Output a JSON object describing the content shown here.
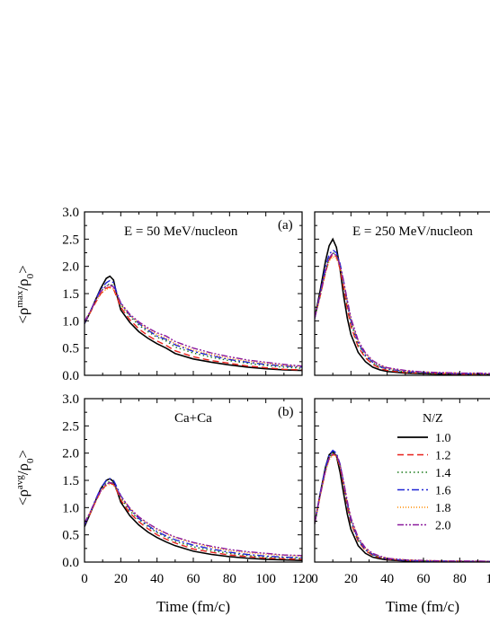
{
  "chart_data": {
    "type": "line",
    "x_unit_label": "Time (fm/c)",
    "series_styles": [
      {
        "name": "1.0",
        "color": "#000000",
        "dash": ""
      },
      {
        "name": "1.2",
        "color": "#e8211c",
        "dash": "7,4"
      },
      {
        "name": "1.4",
        "color": "#1a7a1a",
        "dash": "1.5,3"
      },
      {
        "name": "1.6",
        "color": "#1f25d6",
        "dash": "8,3,2,3"
      },
      {
        "name": "1.8",
        "color": "#ff8c00",
        "dash": "1,2"
      },
      {
        "name": "2.0",
        "color": "#8b1a9e",
        "dash": "7,2,2,2,2,2"
      }
    ],
    "legend": {
      "title": "N/Z",
      "entries": [
        "1.0",
        "1.2",
        "1.4",
        "1.6",
        "1.8",
        "2.0"
      ],
      "placement": "panel-d right"
    },
    "panels": [
      {
        "id": "a",
        "panel_label": "(a)",
        "annotation": "E = 50 MeV/nucleon",
        "ylabel": "<ρmax/ρ0>",
        "xlim": [
          0,
          120
        ],
        "ylim": [
          0,
          3.0
        ],
        "yticks": [
          "0.0",
          "0.5",
          "1.0",
          "1.5",
          "2.0",
          "2.5",
          "3.0"
        ],
        "x": [
          0,
          3,
          6,
          9,
          12,
          14,
          16,
          18,
          20,
          25,
          30,
          35,
          40,
          45,
          50,
          60,
          70,
          80,
          90,
          100,
          110,
          120
        ],
        "series": [
          {
            "name": "1.0",
            "values": [
              0.95,
              1.15,
              1.38,
              1.6,
              1.78,
              1.82,
              1.75,
              1.45,
              1.2,
              0.97,
              0.8,
              0.68,
              0.58,
              0.5,
              0.4,
              0.3,
              0.24,
              0.19,
              0.15,
              0.12,
              0.1,
              0.09
            ]
          },
          {
            "name": "1.2",
            "values": [
              0.97,
              1.14,
              1.33,
              1.5,
              1.6,
              1.62,
              1.58,
              1.42,
              1.25,
              1.02,
              0.85,
              0.73,
              0.63,
              0.55,
              0.45,
              0.34,
              0.27,
              0.22,
              0.17,
              0.14,
              0.11,
              0.1
            ]
          },
          {
            "name": "1.4",
            "values": [
              0.98,
              1.16,
              1.36,
              1.54,
              1.65,
              1.68,
              1.64,
              1.48,
              1.3,
              1.08,
              0.92,
              0.8,
              0.7,
              0.63,
              0.52,
              0.41,
              0.33,
              0.27,
              0.22,
              0.18,
              0.15,
              0.13
            ]
          },
          {
            "name": "1.6",
            "values": [
              0.96,
              1.16,
              1.38,
              1.58,
              1.7,
              1.74,
              1.7,
              1.5,
              1.32,
              1.1,
              0.95,
              0.83,
              0.72,
              0.66,
              0.56,
              0.44,
              0.36,
              0.29,
              0.24,
              0.2,
              0.17,
              0.15
            ]
          },
          {
            "name": "1.8",
            "values": [
              0.98,
              1.15,
              1.34,
              1.5,
              1.58,
              1.6,
              1.58,
              1.45,
              1.3,
              1.1,
              0.96,
              0.85,
              0.75,
              0.68,
              0.58,
              0.46,
              0.38,
              0.31,
              0.26,
              0.22,
              0.18,
              0.16
            ]
          },
          {
            "name": "2.0",
            "values": [
              0.99,
              1.16,
              1.36,
              1.54,
              1.64,
              1.66,
              1.62,
              1.48,
              1.33,
              1.12,
              0.98,
              0.87,
              0.78,
              0.72,
              0.62,
              0.5,
              0.41,
              0.34,
              0.28,
              0.24,
              0.2,
              0.17
            ]
          }
        ]
      },
      {
        "id": "b",
        "panel_label": "(b)",
        "annotation": "Ca+Ca",
        "ylabel": "<ρavg/ρ0>",
        "xlim": [
          0,
          120
        ],
        "ylim": [
          0,
          3.0
        ],
        "yticks": [
          "0.0",
          "0.5",
          "1.0",
          "1.5",
          "2.0",
          "2.5",
          "3.0"
        ],
        "xticks": [
          "0",
          "20",
          "40",
          "60",
          "80",
          "100",
          "120"
        ],
        "x": [
          0,
          3,
          6,
          9,
          12,
          14,
          16,
          18,
          20,
          25,
          30,
          35,
          40,
          45,
          50,
          60,
          70,
          80,
          90,
          100,
          110,
          120
        ],
        "series": [
          {
            "name": "1.0",
            "values": [
              0.65,
              0.88,
              1.12,
              1.35,
              1.5,
              1.53,
              1.48,
              1.3,
              1.1,
              0.85,
              0.68,
              0.55,
              0.45,
              0.37,
              0.3,
              0.2,
              0.14,
              0.1,
              0.07,
              0.05,
              0.04,
              0.03
            ]
          },
          {
            "name": "1.2",
            "values": [
              0.68,
              0.88,
              1.1,
              1.3,
              1.42,
              1.45,
              1.42,
              1.3,
              1.14,
              0.9,
              0.74,
              0.61,
              0.5,
              0.42,
              0.35,
              0.24,
              0.18,
              0.13,
              0.1,
              0.07,
              0.06,
              0.05
            ]
          },
          {
            "name": "1.4",
            "values": [
              0.7,
              0.9,
              1.12,
              1.32,
              1.45,
              1.48,
              1.45,
              1.33,
              1.18,
              0.94,
              0.78,
              0.65,
              0.54,
              0.46,
              0.38,
              0.28,
              0.21,
              0.16,
              0.12,
              0.09,
              0.08,
              0.07
            ]
          },
          {
            "name": "1.6",
            "values": [
              0.68,
              0.9,
              1.14,
              1.36,
              1.5,
              1.53,
              1.5,
              1.37,
              1.22,
              0.97,
              0.8,
              0.67,
              0.56,
              0.48,
              0.41,
              0.31,
              0.24,
              0.18,
              0.14,
              0.11,
              0.09,
              0.08
            ]
          },
          {
            "name": "1.8",
            "values": [
              0.72,
              0.9,
              1.1,
              1.3,
              1.4,
              1.43,
              1.42,
              1.32,
              1.2,
              0.98,
              0.82,
              0.7,
              0.6,
              0.52,
              0.45,
              0.35,
              0.27,
              0.21,
              0.17,
              0.14,
              0.12,
              0.11
            ]
          },
          {
            "name": "2.0",
            "values": [
              0.72,
              0.91,
              1.12,
              1.31,
              1.43,
              1.46,
              1.44,
              1.34,
              1.21,
              0.99,
              0.83,
              0.71,
              0.61,
              0.53,
              0.46,
              0.36,
              0.29,
              0.23,
              0.19,
              0.16,
              0.13,
              0.12
            ]
          }
        ]
      },
      {
        "id": "c",
        "panel_label": "",
        "annotation": "E = 250 MeV/nucleon",
        "xlim": [
          0,
          120
        ],
        "ylim": [
          0,
          3.0
        ],
        "x": [
          0,
          3,
          6,
          8,
          10,
          12,
          14,
          16,
          18,
          20,
          24,
          28,
          32,
          36,
          40,
          50,
          60,
          70,
          80,
          90,
          100,
          110,
          120
        ],
        "series": [
          {
            "name": "1.0",
            "values": [
              1.05,
              1.55,
              2.1,
              2.38,
              2.5,
              2.35,
              1.95,
              1.45,
              1.05,
              0.75,
              0.42,
              0.25,
              0.15,
              0.1,
              0.07,
              0.04,
              0.03,
              0.02,
              0.02,
              0.02,
              0.01,
              0.01,
              0.01
            ]
          },
          {
            "name": "1.2",
            "values": [
              1.05,
              1.45,
              1.9,
              2.12,
              2.22,
              2.18,
              1.95,
              1.6,
              1.22,
              0.9,
              0.52,
              0.32,
              0.2,
              0.13,
              0.09,
              0.05,
              0.04,
              0.03,
              0.02,
              0.02,
              0.02,
              0.02,
              0.01
            ]
          },
          {
            "name": "1.4",
            "values": [
              1.05,
              1.45,
              1.92,
              2.15,
              2.25,
              2.22,
              2.02,
              1.68,
              1.3,
              0.96,
              0.56,
              0.35,
              0.23,
              0.15,
              0.11,
              0.06,
              0.04,
              0.03,
              0.03,
              0.02,
              0.02,
              0.02,
              0.02
            ]
          },
          {
            "name": "1.6",
            "values": [
              1.04,
              1.5,
              2.0,
              2.22,
              2.3,
              2.25,
              2.05,
              1.72,
              1.35,
              1.0,
              0.6,
              0.37,
              0.24,
              0.16,
              0.12,
              0.07,
              0.05,
              0.04,
              0.03,
              0.03,
              0.02,
              0.02,
              0.02
            ]
          },
          {
            "name": "1.8",
            "values": [
              1.06,
              1.45,
              1.88,
              2.1,
              2.18,
              2.15,
              1.98,
              1.7,
              1.35,
              1.02,
              0.62,
              0.4,
              0.26,
              0.18,
              0.13,
              0.08,
              0.06,
              0.05,
              0.04,
              0.03,
              0.03,
              0.03,
              0.02
            ]
          },
          {
            "name": "2.0",
            "values": [
              1.06,
              1.47,
              1.92,
              2.15,
              2.24,
              2.2,
              2.02,
              1.72,
              1.38,
              1.05,
              0.64,
              0.41,
              0.27,
              0.19,
              0.14,
              0.09,
              0.06,
              0.05,
              0.04,
              0.04,
              0.03,
              0.03,
              0.03
            ]
          }
        ]
      },
      {
        "id": "d",
        "panel_label": "",
        "annotation": "",
        "xlim": [
          0,
          120
        ],
        "ylim": [
          0,
          3.0
        ],
        "xticks": [
          "0",
          "20",
          "40",
          "60",
          "80",
          "100"
        ],
        "x": [
          0,
          3,
          6,
          8,
          10,
          12,
          14,
          16,
          18,
          20,
          24,
          28,
          32,
          36,
          40,
          50,
          60,
          70,
          80,
          90,
          100,
          110,
          120
        ],
        "series": [
          {
            "name": "1.0",
            "values": [
              0.7,
              1.25,
              1.75,
              1.97,
              2.03,
              1.95,
              1.65,
              1.25,
              0.88,
              0.6,
              0.3,
              0.16,
              0.09,
              0.06,
              0.04,
              0.02,
              0.01,
              0.01,
              0.01,
              0.01,
              0.0,
              0.0,
              0.0
            ]
          },
          {
            "name": "1.2",
            "values": [
              0.72,
              1.22,
              1.68,
              1.9,
              1.98,
              1.95,
              1.75,
              1.4,
              1.02,
              0.72,
              0.38,
              0.21,
              0.12,
              0.08,
              0.05,
              0.03,
              0.02,
              0.01,
              0.01,
              0.01,
              0.01,
              0.01,
              0.01
            ]
          },
          {
            "name": "1.4",
            "values": [
              0.72,
              1.22,
              1.7,
              1.93,
              2.0,
              1.97,
              1.78,
              1.43,
              1.06,
              0.75,
              0.4,
              0.22,
              0.13,
              0.09,
              0.06,
              0.03,
              0.02,
              0.02,
              0.01,
              0.01,
              0.01,
              0.01,
              0.01
            ]
          },
          {
            "name": "1.6",
            "values": [
              0.72,
              1.25,
              1.74,
              1.97,
              2.05,
              2.0,
              1.8,
              1.45,
              1.08,
              0.77,
              0.42,
              0.23,
              0.14,
              0.09,
              0.06,
              0.03,
              0.02,
              0.02,
              0.01,
              0.01,
              0.01,
              0.01,
              0.01
            ]
          },
          {
            "name": "1.8",
            "values": [
              0.73,
              1.2,
              1.66,
              1.88,
              1.96,
              1.94,
              1.76,
              1.45,
              1.1,
              0.8,
              0.44,
              0.25,
              0.15,
              0.1,
              0.07,
              0.04,
              0.03,
              0.02,
              0.02,
              0.01,
              0.01,
              0.01,
              0.01
            ]
          },
          {
            "name": "2.0",
            "values": [
              0.73,
              1.22,
              1.69,
              1.91,
              1.99,
              1.97,
              1.79,
              1.47,
              1.12,
              0.81,
              0.45,
              0.26,
              0.16,
              0.11,
              0.07,
              0.04,
              0.03,
              0.02,
              0.02,
              0.02,
              0.01,
              0.01,
              0.01
            ]
          }
        ]
      }
    ]
  },
  "labels": {
    "ylabel_top_prefix": "<ρ",
    "ylabel_top_sup": "max",
    "ylabel_top_mid": "/ρ",
    "ylabel_top_sub": "0",
    "ylabel_top_suffix": ">",
    "ylabel_bottom_prefix": "<ρ",
    "ylabel_bottom_sup": "avg",
    "ylabel_bottom_mid": "/ρ",
    "ylabel_bottom_sub": "0",
    "ylabel_bottom_suffix": ">",
    "xlabel_left": "Time (fm/c)",
    "xlabel_right": "Time (fm/c)"
  }
}
